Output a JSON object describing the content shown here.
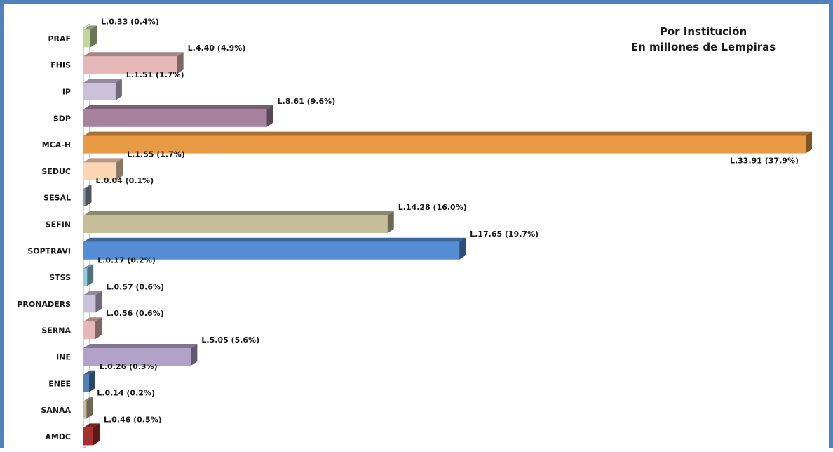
{
  "chart_data": {
    "type": "bar",
    "orientation": "horizontal",
    "title": "Por Institución",
    "subtitle": "En millones de Lempiras",
    "xlim": [
      0,
      33.91
    ],
    "grid": false,
    "legend": "none",
    "bars": [
      {
        "category": "PRAF",
        "value": 0.33,
        "label": "L.0.33  (0.4%)",
        "color": "#c3d69b"
      },
      {
        "category": "FHIS",
        "value": 4.4,
        "label": "L.4.40  (4.9%)",
        "color": "#e6b9b8"
      },
      {
        "category": "IP",
        "value": 1.51,
        "label": "L.1.51  (1.7%)",
        "color": "#ccc1da"
      },
      {
        "category": "SDP",
        "value": 8.61,
        "label": "L.8.61  (9.6%)",
        "color": "#a6829e"
      },
      {
        "category": "MCA-H",
        "value": 33.91,
        "label": "L.33.91  (37.9%)",
        "color": "#e89a45"
      },
      {
        "category": "SEDUC",
        "value": 1.55,
        "label": "L.1.55  (1.7%)",
        "color": "#fcd5b5"
      },
      {
        "category": "SESAL",
        "value": 0.04,
        "label": "L.0.04  (0.1%)",
        "color": "#8b9aab"
      },
      {
        "category": "SEFIN",
        "value": 14.28,
        "label": "L.14.28  (16.0%)",
        "color": "#c4bd97"
      },
      {
        "category": "SOPTRAVI",
        "value": 17.65,
        "label": "L.17.65 (19.7%)",
        "color": "#548dd4"
      },
      {
        "category": "STSS",
        "value": 0.17,
        "label": "L.0.17  (0.2%)",
        "color": "#93cddd"
      },
      {
        "category": "PRONADERS",
        "value": 0.57,
        "label": "L.0.57  (0.6%)",
        "color": "#ccc1da"
      },
      {
        "category": "SERNA",
        "value": 0.56,
        "label": "L.0.56  (0.6%)",
        "color": "#e6b9b8"
      },
      {
        "category": "INE",
        "value": 5.05,
        "label": "L.5.05  (5.6%)",
        "color": "#b3a2c7"
      },
      {
        "category": "ENEE",
        "value": 0.26,
        "label": "L.0.26  (0.3%)",
        "color": "#4f81bd"
      },
      {
        "category": "SANAA",
        "value": 0.14,
        "label": "L.0.14 (0.2%)",
        "color": "#c4bd97"
      },
      {
        "category": "AMDC",
        "value": 0.46,
        "label": "L.0.46  (0.5%)",
        "color": "#a5302d"
      }
    ]
  }
}
